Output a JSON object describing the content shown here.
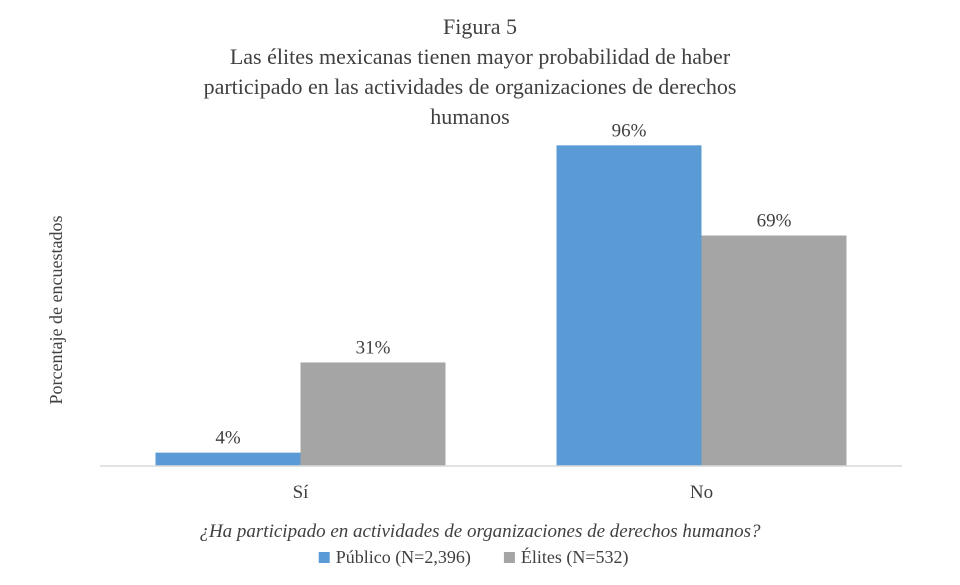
{
  "chart_data": {
    "type": "bar",
    "figure_label": "Figura 5",
    "title_lines": [
      "Las élites mexicanas tienen mayor probabilidad de haber",
      "participado en las actividades de organizaciones de derechos",
      "humanos"
    ],
    "categories": [
      "Sí",
      "No"
    ],
    "series": [
      {
        "name": "Público (N=2,396)",
        "values": [
          4,
          96
        ],
        "labels": [
          "4%",
          "96%"
        ],
        "color": "#5b9bd5"
      },
      {
        "name": "Élites (N=532)",
        "values": [
          31,
          69
        ],
        "labels": [
          "31%",
          "69%"
        ],
        "color": "#a5a5a5"
      }
    ],
    "ylabel": "Porcentaje de encuestados",
    "xlabel": "¿Ha participado en actividades de organizaciones de derechos humanos?",
    "ylim": [
      0,
      100
    ],
    "grid": false,
    "legend_position": "bottom"
  }
}
